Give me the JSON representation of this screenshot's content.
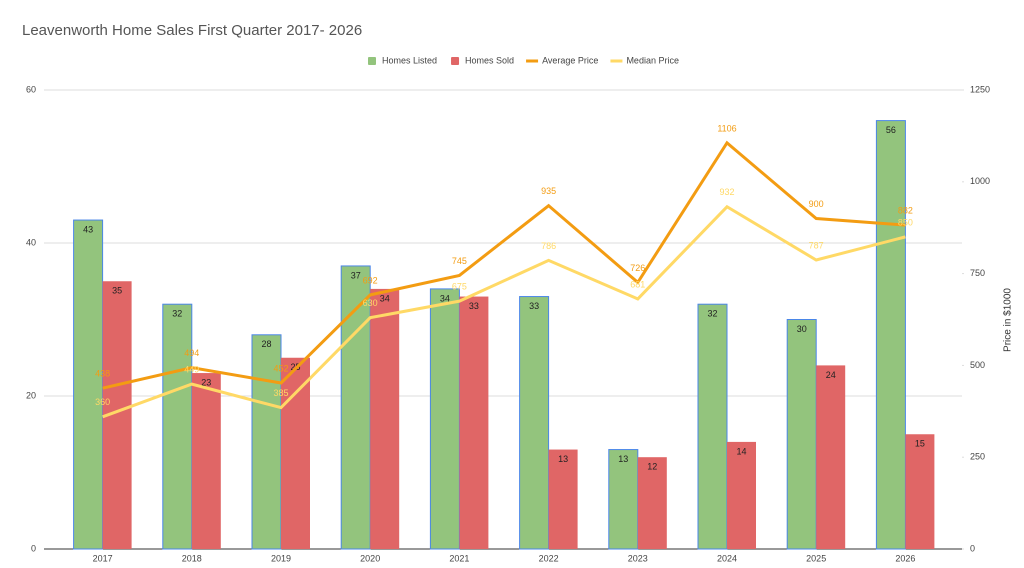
{
  "chart_data": {
    "type": "bar",
    "title": "Leavenworth Home Sales First Quarter 2017- 2026",
    "y2_label": "Price in $1000",
    "categories": [
      "2017",
      "2018",
      "2019",
      "2020",
      "2021",
      "2022",
      "2023",
      "2024",
      "2025",
      "2026"
    ],
    "series": [
      {
        "name": "Homes Listed",
        "type": "bar",
        "color": "#93c47d",
        "values": [
          43,
          32,
          28,
          37,
          34,
          33,
          13,
          32,
          30,
          56
        ]
      },
      {
        "name": "Homes Sold",
        "type": "bar",
        "color": "#e06666",
        "values": [
          35,
          23,
          25,
          34,
          33,
          13,
          12,
          14,
          24,
          15
        ]
      },
      {
        "name": "Average Price",
        "type": "line",
        "axis": "y2",
        "color": "#f39c12",
        "values": [
          438,
          494,
          452,
          692,
          745,
          935,
          726,
          1106,
          900,
          882
        ]
      },
      {
        "name": "Median Price",
        "type": "line",
        "axis": "y2",
        "color": "#ffd966",
        "values": [
          360,
          449,
          385,
          630,
          675,
          786,
          681,
          932,
          787,
          850
        ]
      }
    ],
    "ylim": [
      0,
      60
    ],
    "yticks": [
      0,
      20,
      40,
      60
    ],
    "y2lim": [
      0,
      1250
    ],
    "y2ticks": [
      0,
      250,
      500,
      750,
      1000,
      1250
    ],
    "grid": true,
    "legend": "top"
  }
}
